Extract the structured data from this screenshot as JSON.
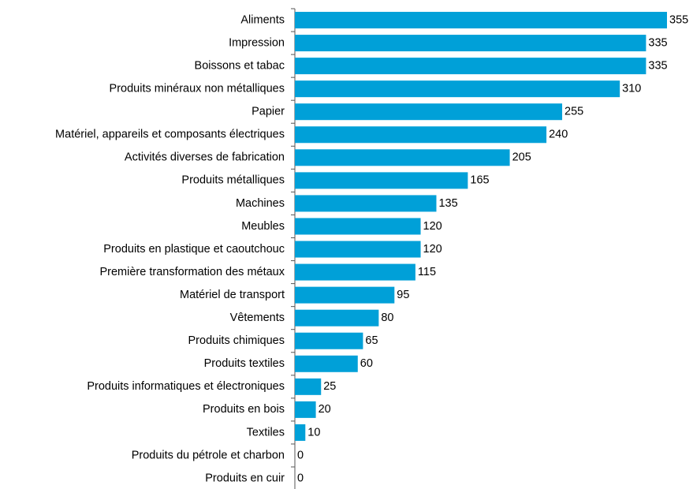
{
  "chart_data": {
    "type": "bar",
    "orientation": "horizontal",
    "color": "#00a0d8",
    "categories": [
      "Aliments",
      "Impression",
      "Boissons et tabac",
      "Produits minéraux non métalliques",
      "Papier",
      "Matériel, appareils et composants électriques",
      "Activités diverses de fabrication",
      "Produits métalliques",
      "Machines",
      "Meubles",
      "Produits en plastique et caoutchouc",
      "Première transformation des métaux",
      "Matériel de transport",
      "Vêtements",
      "Produits chimiques",
      "Produits textiles",
      "Produits informatiques et électroniques",
      "Produits en bois",
      "Textiles",
      "Produits du pétrole et charbon",
      "Produits en cuir"
    ],
    "values": [
      355,
      335,
      335,
      310,
      255,
      240,
      205,
      165,
      135,
      120,
      120,
      115,
      95,
      80,
      65,
      60,
      25,
      20,
      10,
      0,
      0
    ]
  }
}
